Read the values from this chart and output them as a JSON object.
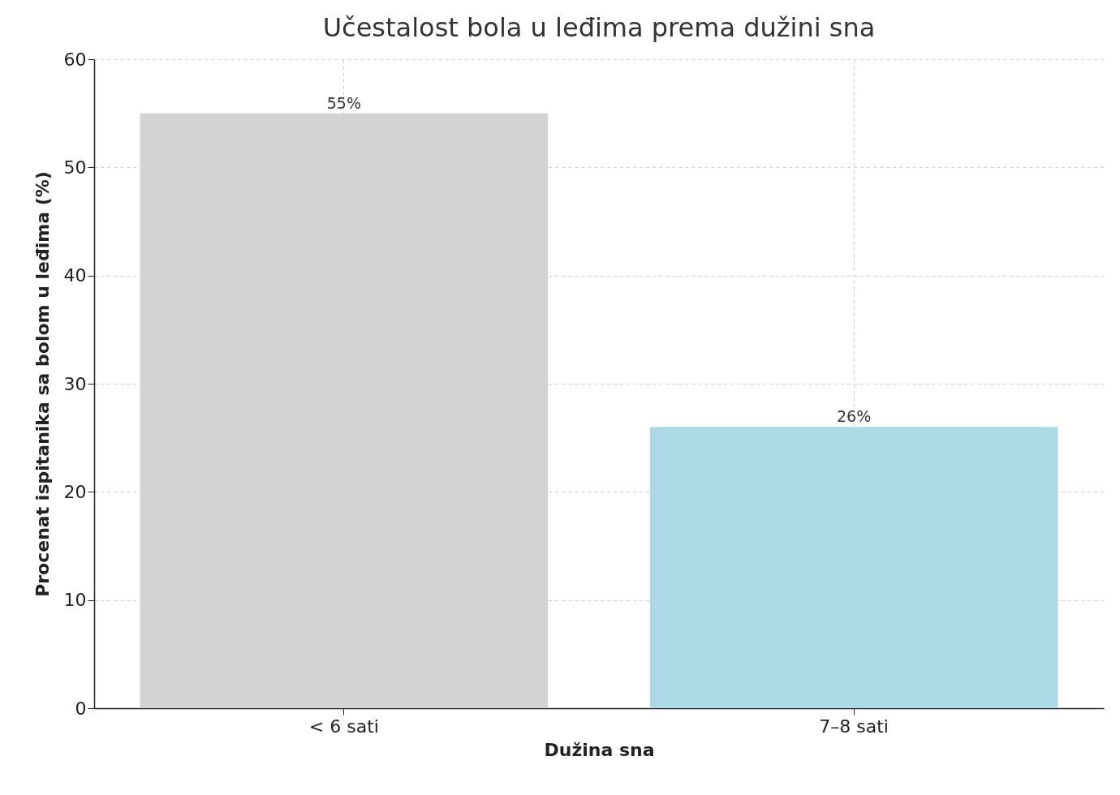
{
  "chart_data": {
    "type": "bar",
    "title": "Učestalost bola u leđima prema dužini sna",
    "xlabel": "Dužina sna",
    "ylabel": "Procenat ispitanika sa bolom u leđima (%)",
    "categories": [
      "< 6 sati",
      "7–8 sati"
    ],
    "values": [
      55,
      26
    ],
    "colors": [
      "#d3d3d3",
      "#add8e6"
    ],
    "value_labels": [
      "55%",
      "26%"
    ],
    "ylim": [
      0,
      60
    ],
    "yticks": [
      0,
      10,
      20,
      30,
      40,
      50,
      60
    ],
    "grid": true
  }
}
